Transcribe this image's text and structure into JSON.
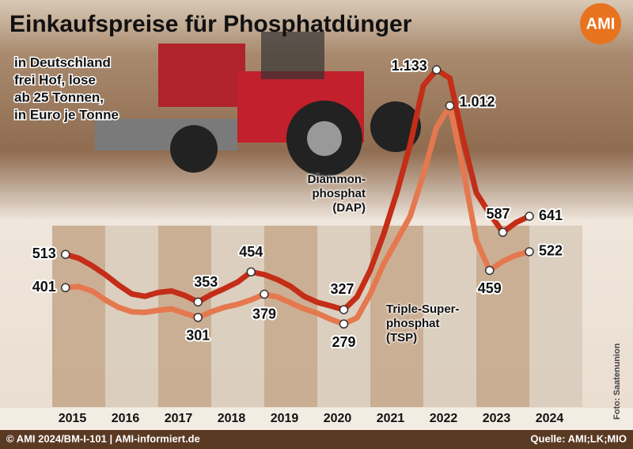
{
  "chart_data": {
    "type": "line",
    "title": "Einkaufspreise für Phosphatdünger",
    "logo": "AMI",
    "subtitle": [
      "in Deutschland",
      "frei Hof, lose",
      "ab 25 Tonnen,",
      "in Euro je Tonne"
    ],
    "x": [
      2015.25,
      2015.5,
      2015.75,
      2016.0,
      2016.25,
      2016.5,
      2016.75,
      2017.0,
      2017.25,
      2017.5,
      2017.75,
      2018.0,
      2018.25,
      2018.5,
      2018.75,
      2019.0,
      2019.25,
      2019.5,
      2019.75,
      2020.0,
      2020.25,
      2020.5,
      2020.75,
      2021.0,
      2021.25,
      2021.5,
      2021.75,
      2022.0,
      2022.25,
      2022.5,
      2022.75,
      2023.0,
      2023.25,
      2023.5,
      2023.75,
      2024.0
    ],
    "xlim": [
      2015,
      2025
    ],
    "xticks": [
      2015,
      2016,
      2017,
      2018,
      2019,
      2020,
      2021,
      2022,
      2023,
      2024
    ],
    "ylim": [
      0,
      1200
    ],
    "series": [
      {
        "name": "Diammon-\nphosphat\n(DAP)",
        "color": "#c42d17",
        "values": [
          513,
          500,
          475,
          445,
          410,
          380,
          372,
          385,
          390,
          375,
          353,
          378,
          398,
          420,
          454,
          445,
          428,
          405,
          372,
          352,
          340,
          327,
          370,
          460,
          580,
          720,
          880,
          1080,
          1133,
          1105,
          900,
          720,
          650,
          587,
          620,
          641
        ],
        "value_labels": [
          "513",
          null,
          null,
          null,
          null,
          null,
          null,
          null,
          null,
          null,
          "353",
          null,
          null,
          null,
          "454",
          null,
          null,
          null,
          null,
          null,
          null,
          "327",
          null,
          null,
          null,
          null,
          null,
          null,
          "1.133",
          null,
          null,
          null,
          null,
          "587",
          null,
          "641"
        ]
      },
      {
        "name": "Triple-Super-\nphosphat (TSP)",
        "color": "#e5784f",
        "values": [
          401,
          405,
          390,
          360,
          335,
          320,
          318,
          325,
          330,
          315,
          301,
          320,
          335,
          345,
          360,
          379,
          370,
          350,
          330,
          315,
          295,
          279,
          300,
          380,
          480,
          560,
          640,
          780,
          940,
          1012,
          800,
          560,
          459,
          490,
          510,
          522
        ],
        "value_labels": [
          "401",
          null,
          null,
          null,
          null,
          null,
          null,
          null,
          null,
          null,
          "301",
          null,
          null,
          null,
          null,
          "379",
          null,
          null,
          null,
          null,
          null,
          "279",
          null,
          null,
          null,
          null,
          null,
          null,
          null,
          "1.012",
          null,
          null,
          "459",
          null,
          null,
          "522"
        ]
      }
    ],
    "photo_credit": "Foto: Saatenunion",
    "copyright": "© AMI 2024/BM-I-101 | AMI-informiert.de",
    "source": "Quelle: AMI;LK;MIO"
  }
}
